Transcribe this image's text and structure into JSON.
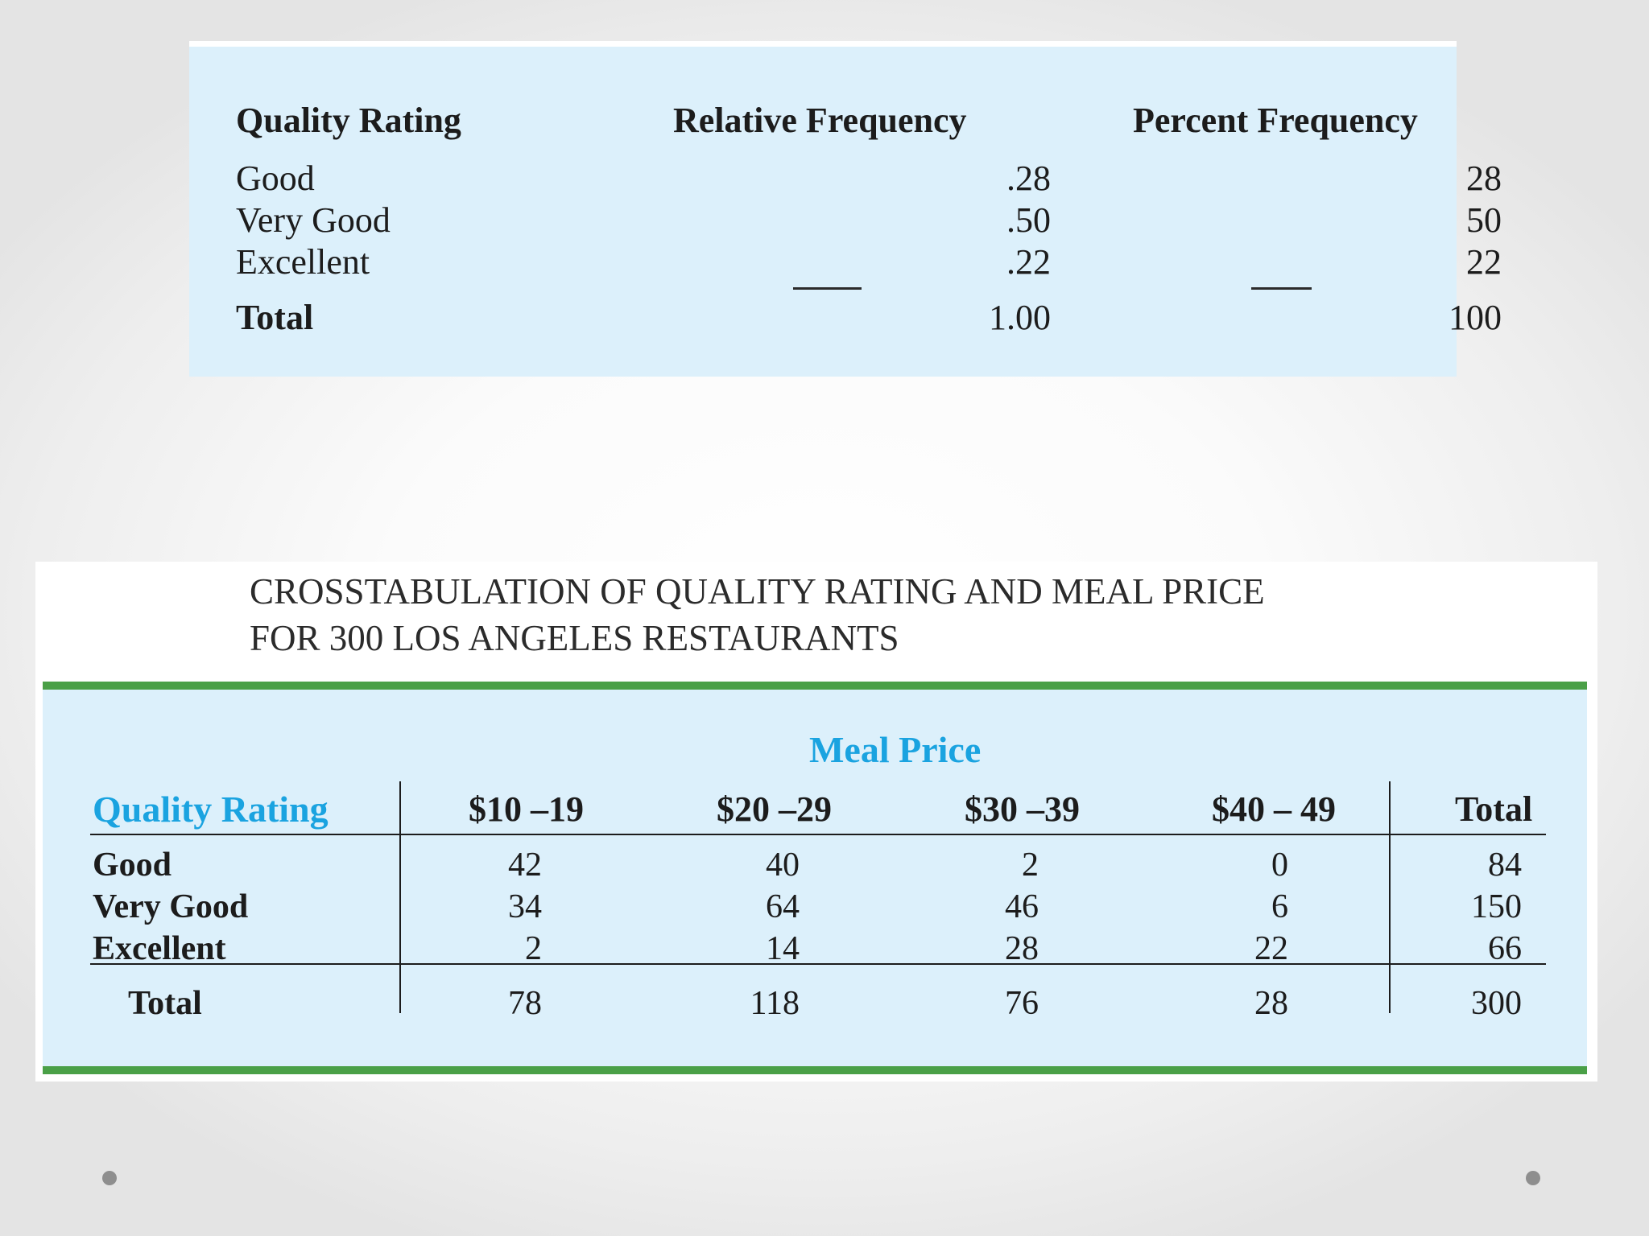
{
  "frequency_table": {
    "headers": [
      "Quality Rating",
      "Relative Frequency",
      "Percent Frequency"
    ],
    "rows": [
      {
        "rating": "Good",
        "relative": ".28",
        "percent": "28"
      },
      {
        "rating": "Very Good",
        "relative": ".50",
        "percent": "50"
      },
      {
        "rating": "Excellent",
        "relative": ".22",
        "percent": "22"
      }
    ],
    "total": {
      "label": "Total",
      "relative": "1.00",
      "percent": "100"
    }
  },
  "crosstab": {
    "title_line1": "CROSSTABULATION OF QUALITY RATING AND MEAL PRICE",
    "title_line2": "FOR 300 LOS ANGELES RESTAURANTS",
    "group_header": "Meal Price",
    "row_header": "Quality Rating",
    "columns": [
      "$10 –19",
      "$20 –29",
      "$30 –39",
      "$40 – 49",
      "Total"
    ],
    "rows": [
      {
        "label": "Good",
        "values": [
          "42",
          "40",
          "2",
          "0",
          "84"
        ]
      },
      {
        "label": "Very Good",
        "values": [
          "34",
          "64",
          "46",
          "6",
          "150"
        ]
      },
      {
        "label": "Excellent",
        "values": [
          "2",
          "14",
          "28",
          "22",
          "66"
        ]
      }
    ],
    "total": {
      "label": "Total",
      "values": [
        "78",
        "118",
        "76",
        "28",
        "300"
      ]
    }
  },
  "colors": {
    "panel": "#dcf0fb",
    "accent_green": "#4aa047",
    "accent_blue": "#1aa3e0"
  }
}
